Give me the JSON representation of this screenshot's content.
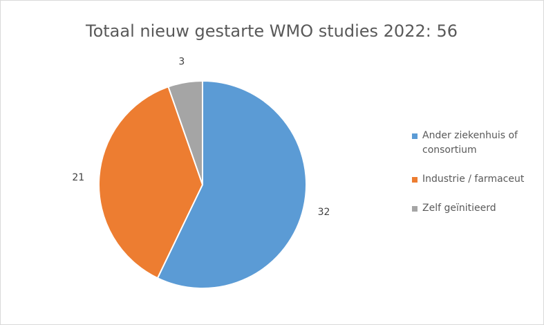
{
  "chart_data": {
    "type": "pie",
    "title": "Totaal nieuw gestarte WMO studies 2022: 56",
    "categories": [
      "Ander ziekenhuis of consortium",
      "Industrie / farmaceut",
      "Zelf geïnitieerd"
    ],
    "values": [
      32,
      21,
      3
    ],
    "colors": [
      "#5b9bd5",
      "#ed7d31",
      "#a5a5a5"
    ],
    "legend": "right"
  }
}
